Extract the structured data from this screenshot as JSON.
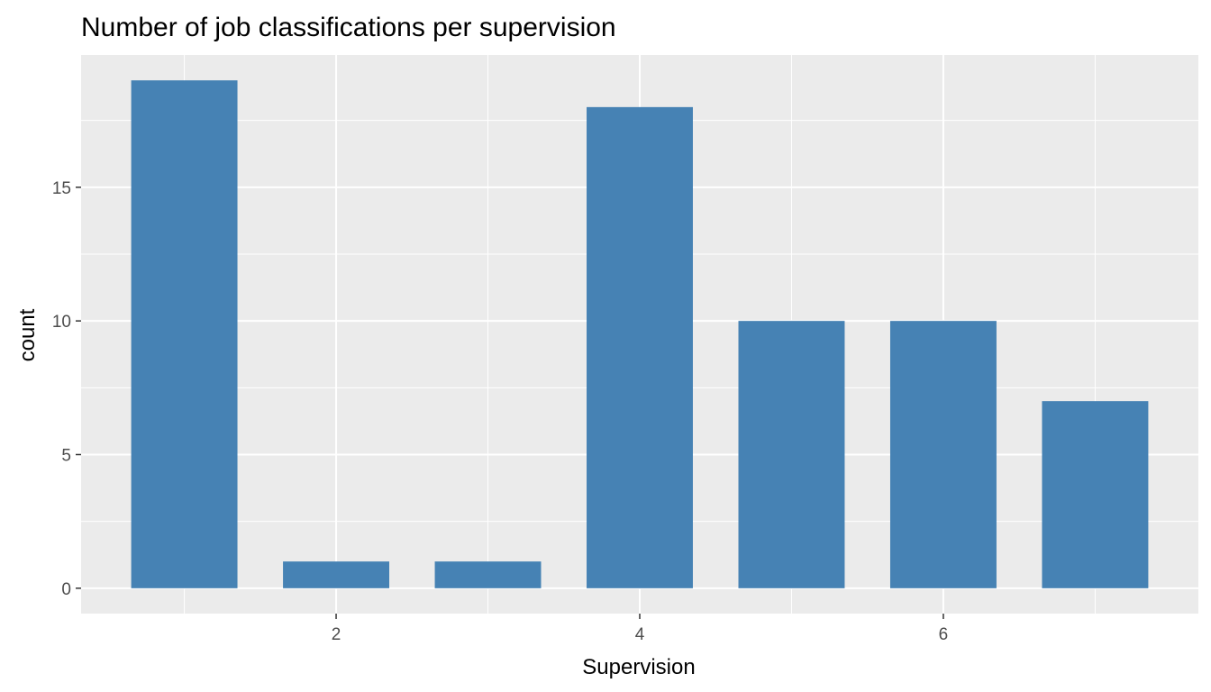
{
  "chart_data": {
    "type": "bar",
    "title": "Number of job classifications per supervision",
    "xlabel": "Supervision",
    "ylabel": "count",
    "x": [
      1,
      2,
      3,
      4,
      5,
      6,
      7
    ],
    "values": [
      19,
      1,
      1,
      18,
      10,
      10,
      7
    ],
    "xlim": [
      0.32,
      7.68
    ],
    "ylim": [
      -0.95,
      19.95
    ],
    "x_ticks": [
      2,
      4,
      6
    ],
    "x_tick_labels": [
      "2",
      "4",
      "6"
    ],
    "y_ticks": [
      0,
      5,
      10,
      15
    ],
    "y_tick_labels": [
      "0",
      "5",
      "10",
      "15"
    ],
    "grid": true,
    "colors": {
      "bar": "#4682b4",
      "panel": "#ebebeb",
      "grid": "#ffffff",
      "tick_text": "#4d4d4d",
      "tick_mark": "#333333"
    }
  }
}
